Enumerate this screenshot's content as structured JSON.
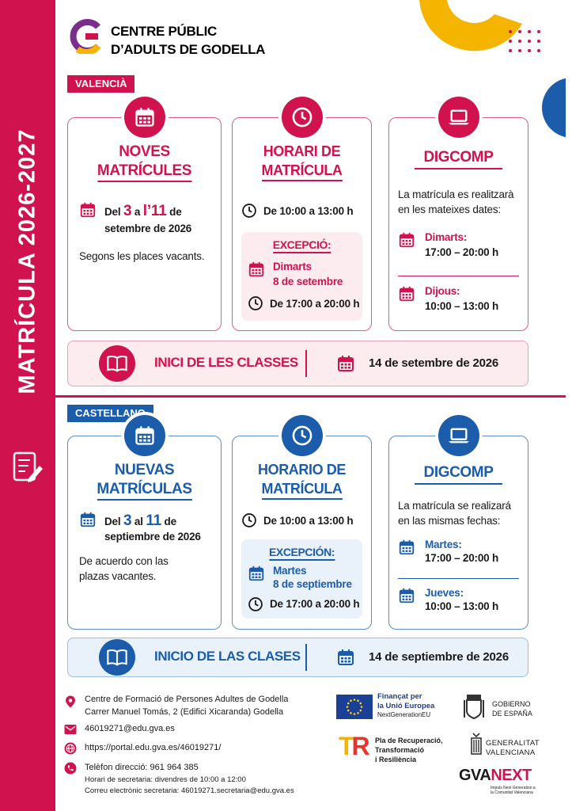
{
  "header": {
    "name_line1": "CENTRE PÚBLIC",
    "name_line2": "D’ADULTS DE GODELLA"
  },
  "sidebar_title": "MATRÍCULA 2026-2027",
  "sections": [
    {
      "language": "VALENCIÀ",
      "enrolment": {
        "title_lines": [
          "NOVES",
          "MATRÍCULES"
        ],
        "date_parts": [
          "Del ",
          "3",
          " a ",
          "l’11",
          " de"
        ],
        "date_line2": "setembre de 2026",
        "note_lines": [
          "Segons les places vacants."
        ]
      },
      "schedule": {
        "title_lines": [
          "HORARI DE",
          "MATRÍCULA"
        ],
        "hours": "De 10:00 a 13:00 h",
        "exception": {
          "label": "EXCEPCIÓ:",
          "day": "Dimarts",
          "date": "8 de setembre",
          "hours": "De 17:00 a 20:00 h"
        }
      },
      "digcomp": {
        "title": "DIGCOMP",
        "intro_lines": [
          "La matrícula es realitzarà",
          "en les mateixes dates:"
        ],
        "slots": [
          {
            "day": "Dimarts:",
            "hours": "17:00 – 20:00 h"
          },
          {
            "day": "Dijous:",
            "hours": "10:00 – 13:00 h"
          }
        ]
      },
      "start": {
        "label": "INICI DE LES CLASSES",
        "date": "14 de setembre de 2026"
      }
    },
    {
      "language": "CASTELLANO",
      "enrolment": {
        "title_lines": [
          "NUEVAS",
          "MATRÍCULAS"
        ],
        "date_parts": [
          "Del ",
          "3",
          " al ",
          "11",
          " de"
        ],
        "date_line2": "septiembre de 2026",
        "note_lines": [
          "De acuerdo con las",
          "plazas vacantes."
        ]
      },
      "schedule": {
        "title_lines": [
          "HORARIO DE",
          "MATRÍCULA"
        ],
        "hours": "De 10:00 a 13:00 h",
        "exception": {
          "label": "EXCEPCIÓN:",
          "day": "Martes",
          "date": "8 de septiembre",
          "hours": "De 17:00 a 20:00 h"
        }
      },
      "digcomp": {
        "title": "DIGCOMP",
        "intro_lines": [
          "La matrícula se realizará",
          "en las mismas fechas:"
        ],
        "slots": [
          {
            "day": "Martes:",
            "hours": "17:00 – 20:00 h"
          },
          {
            "day": "Jueves:",
            "hours": "10:00 – 13:00 h"
          }
        ]
      },
      "start": {
        "label": "INICIO DE LAS CLASES",
        "date": "14 de septiembre de 2026"
      }
    }
  ],
  "footer": {
    "address_lines": [
      "Centre de Formació de Persones Adultes de Godella",
      "Carrer Manuel Tomás, 2 (Edifici Xicaranda) Godella"
    ],
    "email": "46019271@edu.gva.es",
    "web": "https://portal.edu.gva.es/46019271/",
    "phone": "Telèfon direcció:  961 964 385",
    "phone_notes": [
      "Horari de secretaria: divendres de 10:00 a 12:00",
      "Correu electrònic secretaria: 46019271.secretaria@edu.gva.es"
    ],
    "eu_lines": [
      "Finançat per",
      "la Unió Europea",
      "NextGenerationEU"
    ],
    "recovery_lines": [
      "Pla de Recuperació,",
      "Transformació",
      "i Resiliència"
    ],
    "spain_lines": [
      "GOBIERNO",
      "DE ESPAÑA"
    ],
    "gva_lines": [
      "GENERALITAT",
      "VALENCIANA"
    ],
    "gvanext": [
      "GVA",
      "NEXT"
    ],
    "gvanext_note": "Impuls Next Generation a la Comunitat Valenciana"
  }
}
